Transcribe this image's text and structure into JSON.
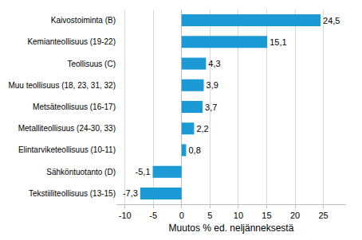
{
  "chart_data": {
    "type": "bar",
    "orientation": "horizontal",
    "categories": [
      "Kaivostoiminta (B)",
      "Kemianteollisuus (19-22)",
      "Teollisuus (C)",
      "Muu teollisuus (18, 23, 31, 32)",
      "Metsäteollisuus (16-17)",
      "Metalliteollisuus (24-30, 33)",
      "Elintarviketeollisuus (10-11)",
      "Sähköntuotanto (D)",
      "Tekstiiliteollisuus (13-15)"
    ],
    "values": [
      24.5,
      15.1,
      4.3,
      3.9,
      3.7,
      2.2,
      0.8,
      -5.1,
      -7.3
    ],
    "value_labels": [
      "24,5",
      "15,1",
      "4,3",
      "3,9",
      "3,7",
      "2,2",
      "0,8",
      "-5,1",
      "-7,3"
    ],
    "data_labels": true,
    "color": "#1b9ad6",
    "xlabel": "Muutos % ed. neljänneksestä",
    "xlim": [
      -11.5,
      29
    ],
    "xticks": [
      -10,
      -5,
      0,
      5,
      10,
      15,
      20,
      25
    ],
    "grid": true
  }
}
